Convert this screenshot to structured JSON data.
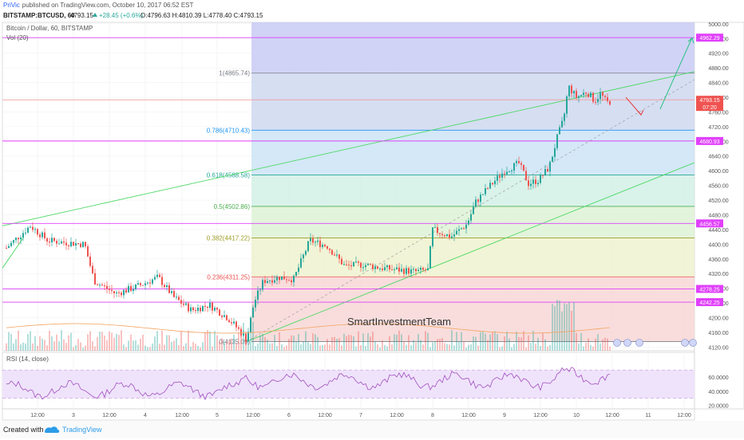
{
  "header": {
    "author": "PriVic",
    "published_text": "published on TradingView.com, October 10, 2017 06:52 EST",
    "symbol_line": "BITSTAMP:BTCUSD, 60",
    "last": "4793.15",
    "change": "+28.45 (+0.6%)",
    "ohlc": "O:4796.63 H:4810.39 L:4778.40 C:4793.15"
  },
  "footer": {
    "created_with": "Created with",
    "brand": "TradingView"
  },
  "chart_data": [
    {
      "type": "candlestick",
      "title": "Bitcoin / Dollar, 60, BITSTAMP",
      "indicator_label": "Vol (20)",
      "watermark": "SmartInvestmentTeam",
      "y_ticks": [
        4120,
        4160,
        4200,
        4240,
        4280,
        4320,
        4360,
        4400,
        4440,
        4480,
        4520,
        4560,
        4600,
        4640,
        4680,
        4720,
        4760,
        4800,
        4840,
        4880,
        4920,
        4960,
        5000
      ],
      "ylim": [
        4110,
        5004
      ],
      "x_tick_labels": [
        "12:00",
        "3",
        "12:00",
        "4",
        "12:00",
        "5",
        "12:00",
        "6",
        "12:00",
        "7",
        "12:00",
        "8",
        "12:00",
        "9",
        "12:00",
        "10",
        "12:00",
        "11",
        "12:00"
      ],
      "fibonacci": [
        {
          "label": "1(4865.74)",
          "value": 4865.74,
          "color": "#787b86"
        },
        {
          "label": "0.786(4710.43)",
          "value": 4710.43,
          "color": "#2196f3"
        },
        {
          "label": "0.618(4588.58)",
          "value": 4588.58,
          "color": "#26a69a"
        },
        {
          "label": "0.5(4502.86)",
          "value": 4502.86,
          "color": "#4caf50"
        },
        {
          "label": "0.382(4417.22)",
          "value": 4417.22,
          "color": "#9e9d24"
        },
        {
          "label": "0.236(4311.25)",
          "value": 4311.25,
          "color": "#ef5350"
        },
        {
          "label": "0(4135.09)",
          "value": 4135.09,
          "color": "#787b86"
        }
      ],
      "horizontal_levels": [
        {
          "label": "4962.29",
          "value": 4962.29
        },
        {
          "label": "4680.93",
          "value": 4680.93
        },
        {
          "label": "4456.57",
          "value": 4456.57
        },
        {
          "label": "4278.25",
          "value": 4278.25
        },
        {
          "label": "4242.25",
          "value": 4242.25
        }
      ],
      "price_marker": {
        "label": "4793.15",
        "value": 4793.15,
        "countdown": "07:20"
      },
      "price_line": 4793.15
    },
    {
      "type": "line",
      "title": "RSI (14, close)",
      "y_ticks": [
        20,
        40,
        60
      ],
      "y_tick_labels": [
        "20.0000",
        "40.0000",
        "60.0000"
      ],
      "ylim": [
        15,
        95
      ],
      "bands": [
        30,
        70
      ]
    }
  ]
}
